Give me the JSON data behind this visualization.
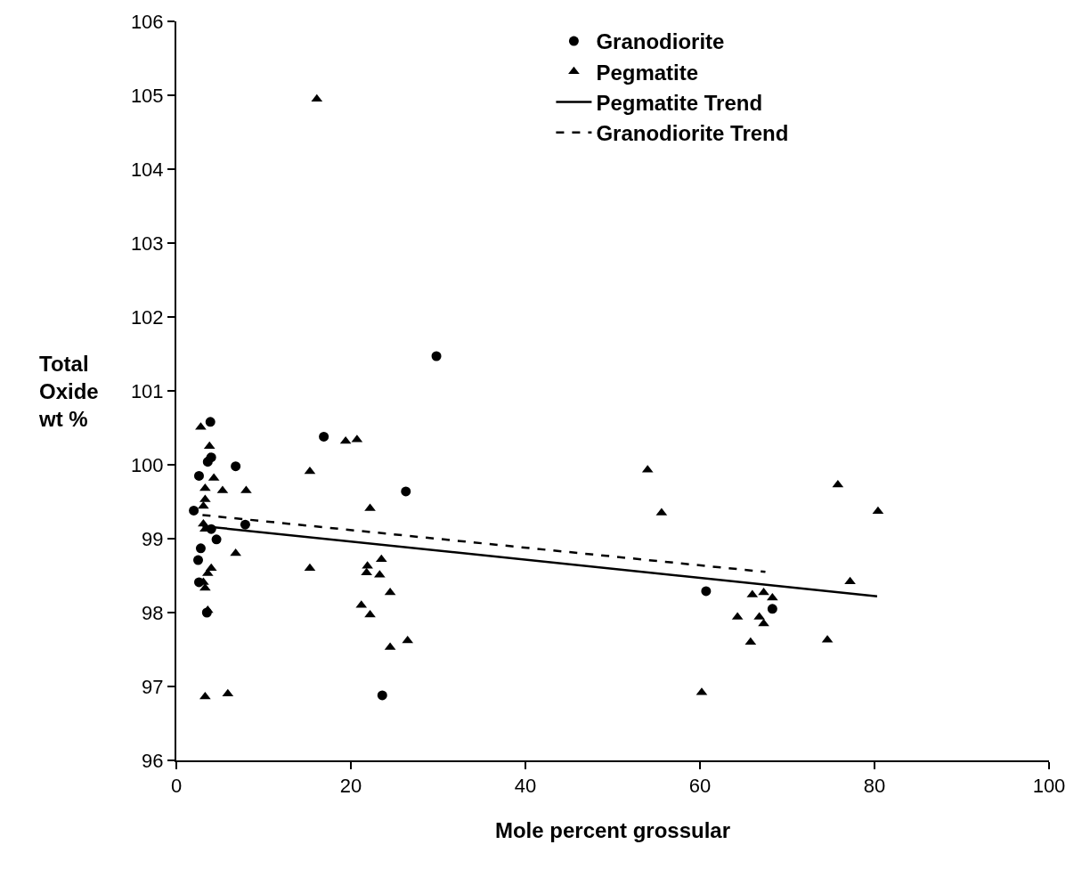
{
  "chart_data": {
    "type": "scatter",
    "xlabel": "Mole percent grossular",
    "ylabel": "Total Oxide wt %",
    "xlim": [
      0,
      100
    ],
    "xticks": [
      0,
      20,
      40,
      60,
      80,
      100
    ],
    "ylim": [
      96,
      106
    ],
    "yticks": [
      96,
      97,
      98,
      99,
      100,
      101,
      102,
      103,
      104,
      105,
      106
    ],
    "legend": "top right",
    "series": [
      {
        "name": "Granodiorite",
        "color": "#000000",
        "marker": "circle",
        "x": [
          3.9,
          6.8,
          2.6,
          2.0,
          4.6,
          2.8,
          2.5,
          2.6,
          3.5,
          3.6,
          4.0,
          4.0,
          7.9,
          16.9,
          29.8,
          26.3,
          23.6,
          60.7,
          68.3
        ],
        "values": [
          100.58,
          99.98,
          99.85,
          99.38,
          98.99,
          98.87,
          98.71,
          98.41,
          98.0,
          100.04,
          100.1,
          99.13,
          99.19,
          100.38,
          101.47,
          99.64,
          96.88,
          98.29,
          98.05
        ]
      },
      {
        "name": "Pegmatite",
        "color": "#000000",
        "marker": "triangle",
        "x": [
          2.8,
          3.8,
          3.8,
          4.3,
          5.3,
          8.0,
          3.3,
          3.3,
          3.1,
          3.1,
          3.3,
          6.8,
          4.0,
          3.6,
          3.1,
          3.3,
          3.6,
          3.3,
          5.9,
          16.1,
          15.3,
          19.4,
          20.7,
          22.2,
          15.3,
          23.5,
          21.9,
          21.8,
          23.3,
          24.5,
          21.2,
          22.2,
          24.5,
          26.5,
          54.0,
          55.6,
          75.8,
          80.4,
          77.2,
          66.0,
          67.3,
          68.3,
          64.3,
          66.8,
          67.3,
          65.8,
          74.6,
          60.2
        ],
        "values": [
          100.51,
          100.25,
          100.1,
          99.82,
          99.65,
          99.65,
          99.68,
          99.53,
          99.44,
          99.2,
          99.13,
          98.8,
          98.6,
          98.53,
          98.41,
          98.33,
          98.03,
          96.86,
          96.9,
          104.95,
          99.91,
          100.32,
          100.34,
          99.41,
          98.6,
          98.72,
          98.63,
          98.54,
          98.51,
          98.27,
          98.1,
          97.97,
          97.53,
          97.62,
          99.93,
          99.35,
          99.73,
          99.37,
          98.42,
          98.24,
          98.27,
          98.2,
          97.94,
          97.94,
          97.85,
          97.6,
          97.63,
          96.92
        ]
      },
      {
        "name": "Pegmatite Trend",
        "type": "line",
        "color": "#000000",
        "line_style": "solid",
        "marker": "none",
        "x": [
          3.0,
          80.3
        ],
        "values": [
          99.17,
          98.22
        ]
      },
      {
        "name": "Granodiorite Trend",
        "type": "line",
        "color": "#000000",
        "line_style": "dashed",
        "marker": "none",
        "x": [
          3.0,
          67.5
        ],
        "values": [
          99.32,
          98.55
        ]
      }
    ]
  }
}
